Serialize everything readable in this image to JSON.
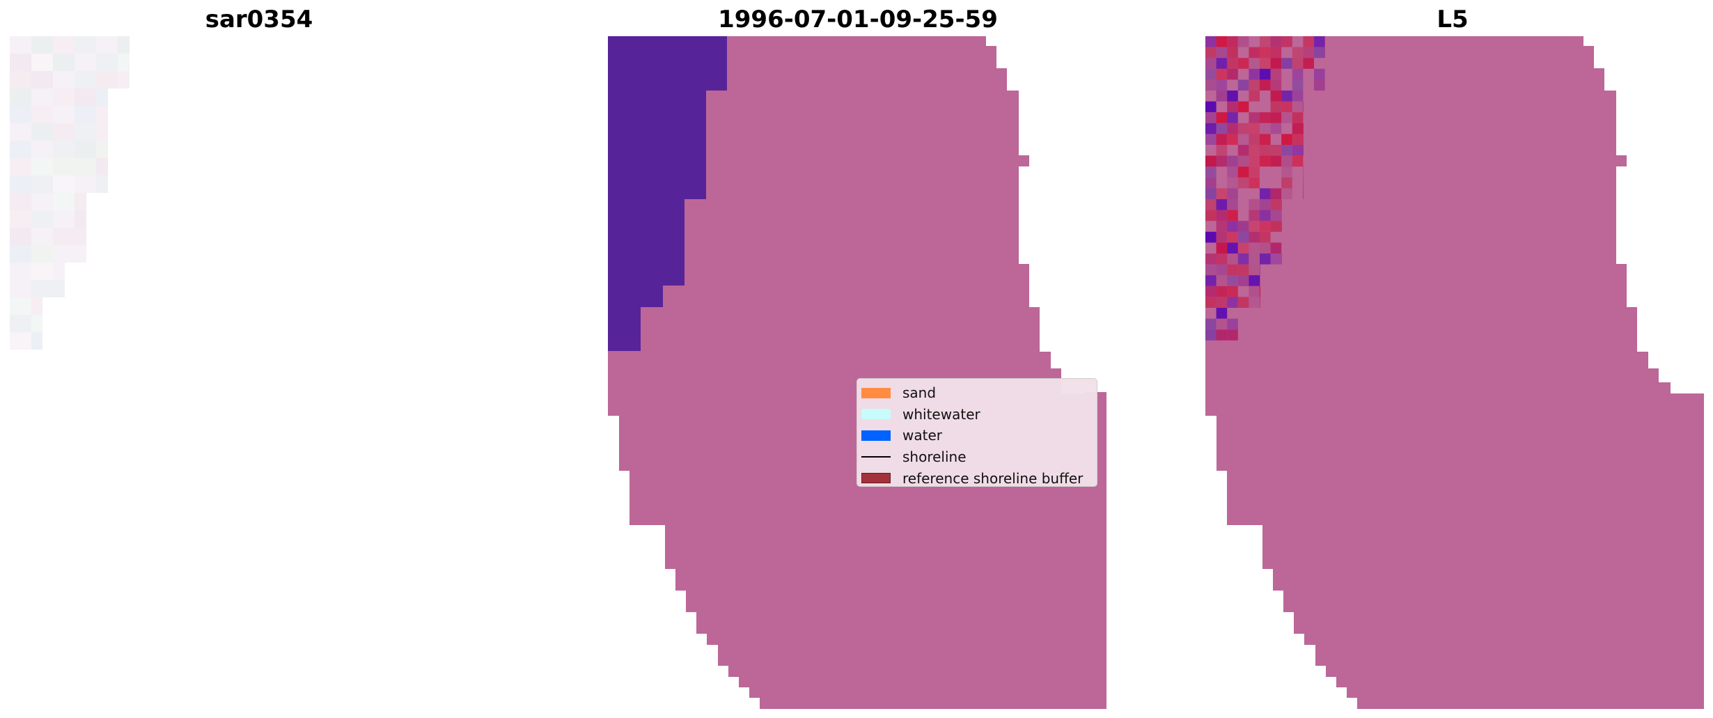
{
  "panels": [
    {
      "title": "sar0354"
    },
    {
      "title": "1996-07-01-09-25-59"
    },
    {
      "title": "L5"
    }
  ],
  "legend": {
    "items": [
      {
        "label": "sand",
        "color": "#ff8c42",
        "kind": "patch"
      },
      {
        "label": "whitewater",
        "color": "#c8fbfb",
        "kind": "patch"
      },
      {
        "label": "water",
        "color": "#0062ff",
        "kind": "patch"
      },
      {
        "label": "shoreline",
        "color": "#000000",
        "kind": "line"
      },
      {
        "label": "reference shoreline buffer",
        "color": "#a3323b",
        "kind": "patch"
      }
    ]
  },
  "colors": {
    "classified_land": "#bc6797",
    "classified_water": "#572399",
    "image_red": "#c4154a",
    "image_purple": "#7d3ba2"
  }
}
